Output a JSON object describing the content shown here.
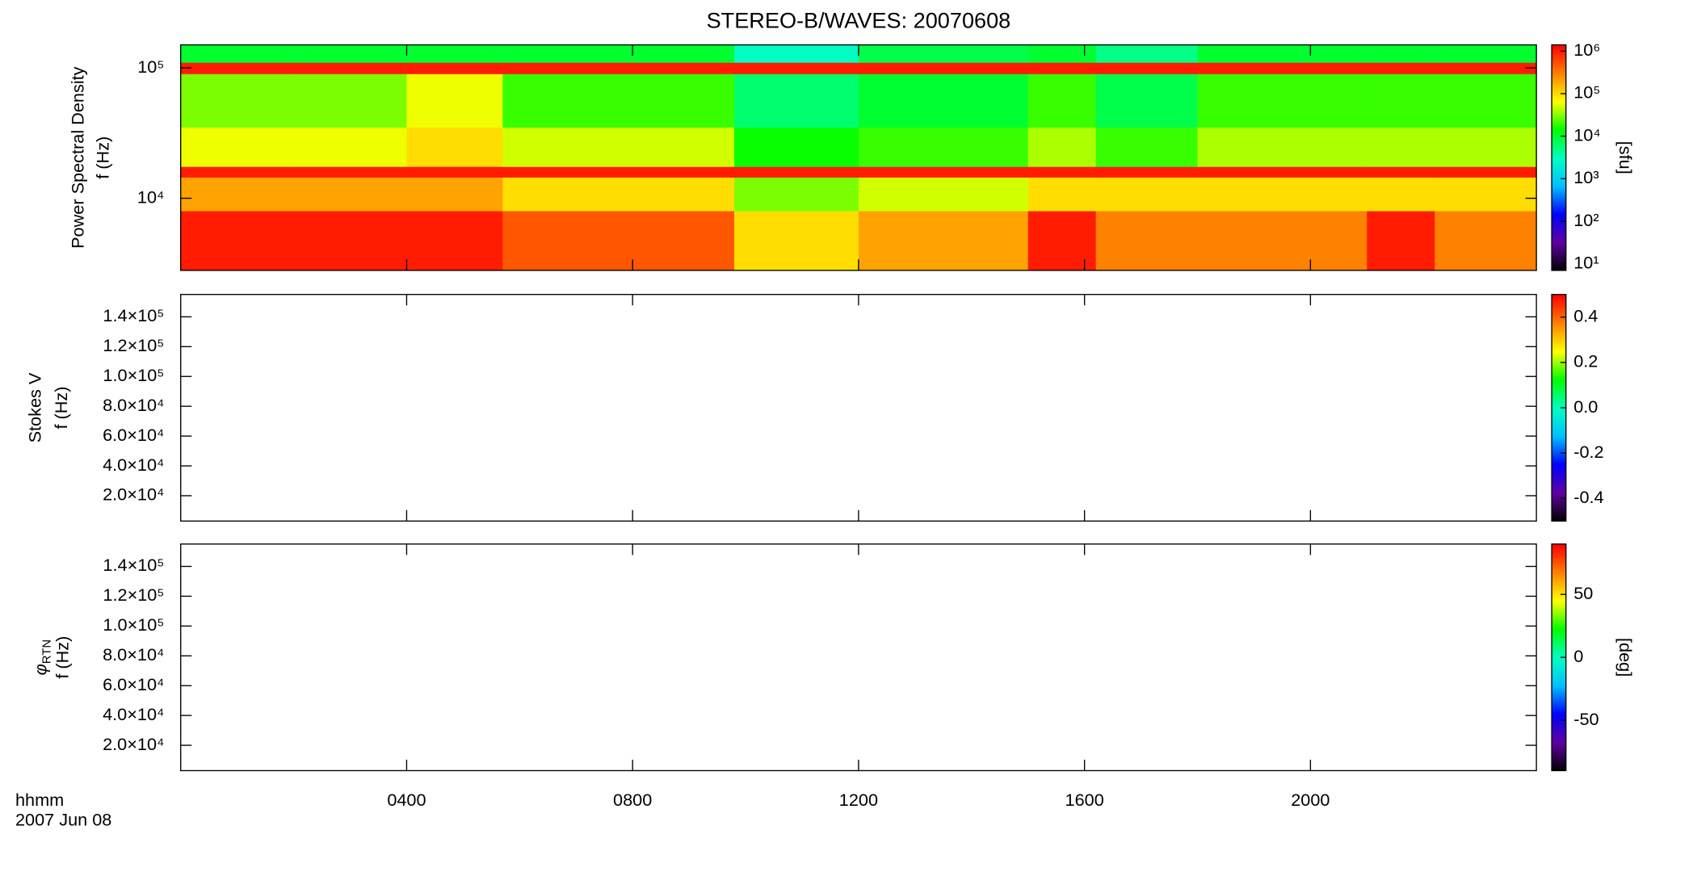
{
  "title": "STEREO-B/WAVES: 20070608",
  "x_axis": {
    "xlim": [
      0,
      24
    ],
    "label": [
      "hhmm",
      "2007 Jun 08"
    ],
    "xticks": [
      {
        "value": 4,
        "label": "0400"
      },
      {
        "value": 8,
        "label": "0800"
      },
      {
        "value": 12,
        "label": "1200"
      },
      {
        "value": 16,
        "label": "1600"
      },
      {
        "value": 20,
        "label": "2000"
      }
    ]
  },
  "colorscale": [
    "#000000",
    "#6000a0",
    "#0000ff",
    "#00c0ff",
    "#00ffc0",
    "#00ff00",
    "#ffff00",
    "#ff8000",
    "#ff0000"
  ],
  "chart_data": [
    {
      "type": "heatmap",
      "ylabel": [
        "Power Spectral Density",
        "f (Hz)"
      ],
      "ylog": true,
      "ylim": [
        2800,
        150000
      ],
      "yticks": [
        {
          "value": 10000,
          "label": "10⁴"
        },
        {
          "value": 100000,
          "label": "10⁵"
        }
      ],
      "x_bins": [
        0,
        2,
        4,
        5.7,
        9.8,
        12,
        15,
        16.2,
        18,
        21,
        22.2,
        24
      ],
      "y_bins": [
        2800,
        8000,
        14500,
        17500,
        35000,
        90000,
        110000,
        150000
      ],
      "values": [
        [
          1000000,
          1000000,
          1000000,
          500000,
          100000,
          200000,
          1000000,
          300000,
          300000,
          1000000,
          300000
        ],
        [
          200000,
          200000,
          200000,
          100000,
          30000,
          50000,
          100000,
          100000,
          100000,
          100000,
          100000
        ],
        [
          1000000,
          1000000,
          1000000,
          1000000,
          1000000,
          1000000,
          1000000,
          1000000,
          1000000,
          1000000,
          1000000
        ],
        [
          60000,
          60000,
          100000,
          50000,
          15000,
          20000,
          40000,
          20000,
          40000,
          40000,
          40000
        ],
        [
          30000,
          30000,
          60000,
          20000,
          6000,
          10000,
          20000,
          8000,
          20000,
          20000,
          20000
        ],
        [
          1000000,
          1000000,
          1000000,
          1000000,
          1000000,
          1000000,
          1000000,
          1000000,
          1000000,
          1000000,
          1000000
        ],
        [
          10000,
          10000,
          10000,
          10000,
          3000,
          8000,
          10000,
          5000,
          10000,
          10000,
          10000
        ]
      ],
      "zlog": true,
      "zlim": [
        7,
        1400000
      ],
      "zlabel": "[sfu]",
      "zticks": [
        {
          "value": 10,
          "label": "10¹"
        },
        {
          "value": 100,
          "label": "10²"
        },
        {
          "value": 1000,
          "label": "10³"
        },
        {
          "value": 10000,
          "label": "10⁴"
        },
        {
          "value": 100000,
          "label": "10⁵"
        },
        {
          "value": 1000000,
          "label": "10⁶"
        }
      ]
    },
    {
      "type": "heatmap",
      "ylabel": [
        "Stokes V",
        "f (Hz)"
      ],
      "ylog": false,
      "ylim": [
        3000,
        155000
      ],
      "yticks": [
        {
          "value": 20000,
          "label": "2.0×10⁴"
        },
        {
          "value": 40000,
          "label": "4.0×10⁴"
        },
        {
          "value": 60000,
          "label": "6.0×10⁴"
        },
        {
          "value": 80000,
          "label": "8.0×10⁴"
        },
        {
          "value": 100000,
          "label": "1.0×10⁵"
        },
        {
          "value": 120000,
          "label": "1.2×10⁵"
        },
        {
          "value": 140000,
          "label": "1.4×10⁵"
        }
      ],
      "zlog": false,
      "zlim": [
        -0.5,
        0.5
      ],
      "zticks": [
        -0.4,
        -0.2,
        {
          "value": 0,
          "label": "0.0"
        },
        0.2,
        0.4
      ]
    },
    {
      "type": "heatmap",
      "ylabel": [
        {
          "text": "φ",
          "sub": "RTN"
        },
        "f (Hz)"
      ],
      "ylog": false,
      "ylim": [
        3000,
        155000
      ],
      "yticks": [
        {
          "value": 20000,
          "label": "2.0×10⁴"
        },
        {
          "value": 40000,
          "label": "4.0×10⁴"
        },
        {
          "value": 60000,
          "label": "6.0×10⁴"
        },
        {
          "value": 80000,
          "label": "8.0×10⁴"
        },
        {
          "value": 100000,
          "label": "1.0×10⁵"
        },
        {
          "value": 120000,
          "label": "1.2×10⁵"
        },
        {
          "value": 140000,
          "label": "1.4×10⁵"
        }
      ],
      "zlog": false,
      "zlim": [
        -90,
        90
      ],
      "zlabel": "[deg]",
      "zticks": [
        -50,
        0,
        50
      ]
    }
  ]
}
